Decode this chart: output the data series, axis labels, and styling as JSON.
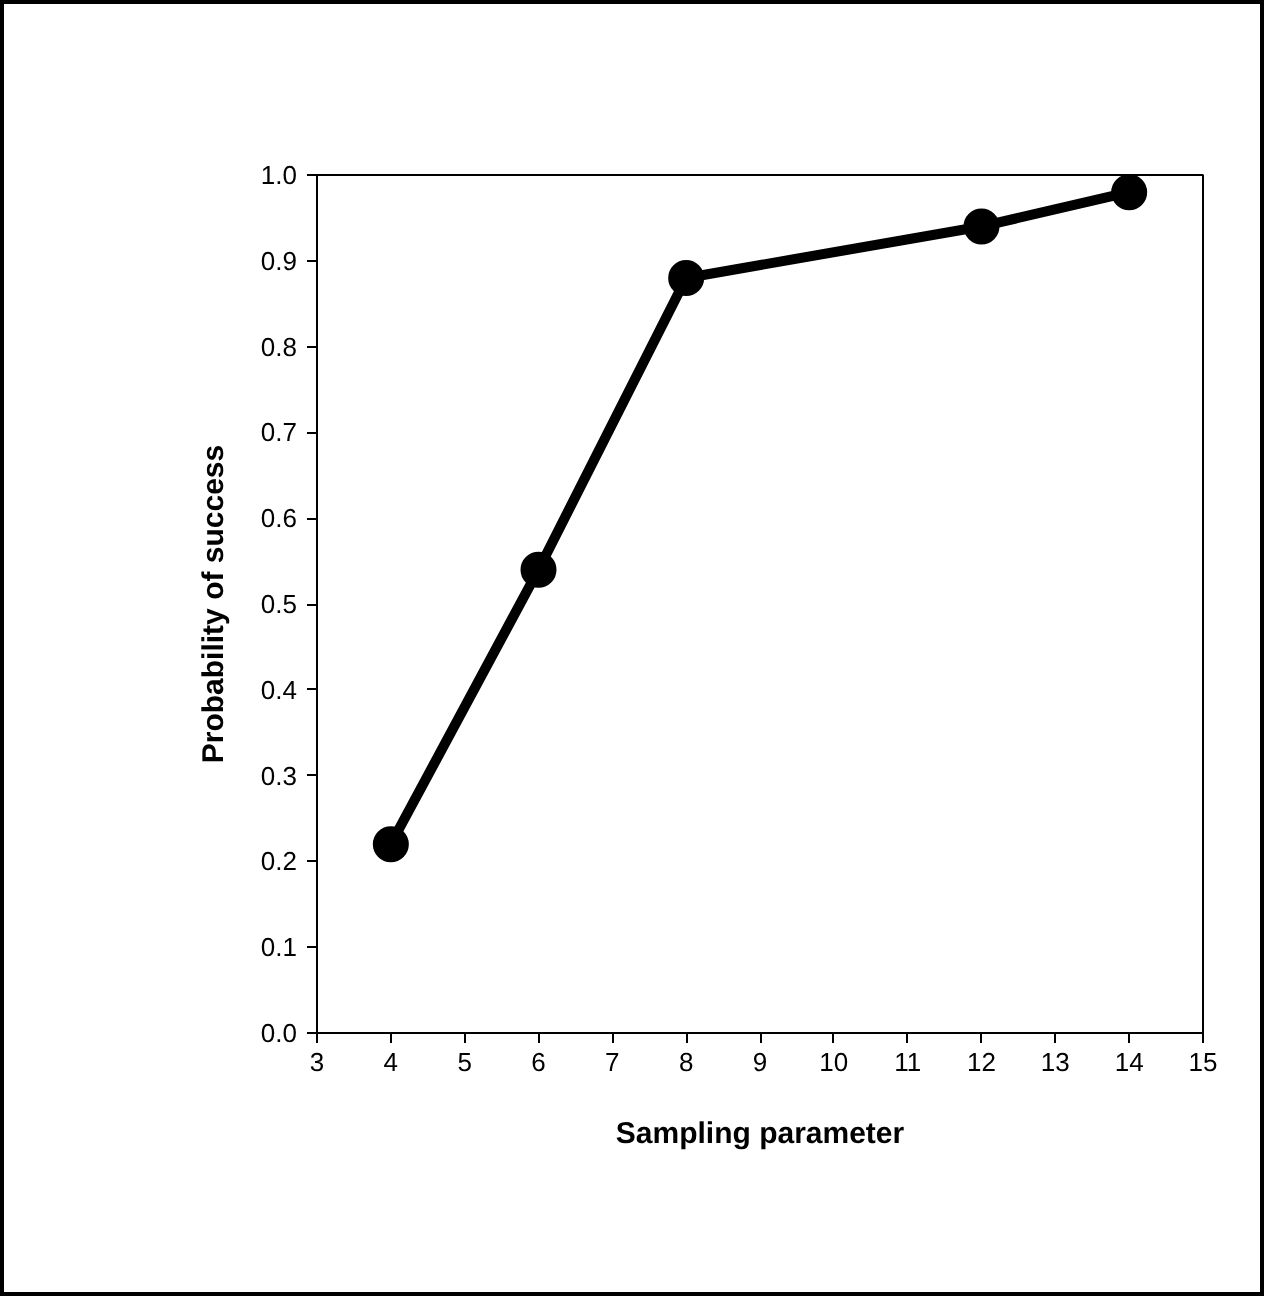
{
  "chart_data": {
    "type": "line",
    "xlabel": "Sampling parameter",
    "ylabel": "Probability of success",
    "x": [
      4,
      6,
      8,
      12,
      14
    ],
    "series": [
      {
        "color": "#000000",
        "values": [
          0.22,
          0.54,
          0.88,
          0.94,
          0.98
        ]
      }
    ],
    "xlim": [
      3,
      15
    ],
    "xticks": [
      3,
      4,
      5,
      6,
      7,
      8,
      9,
      10,
      11,
      12,
      13,
      14,
      15
    ],
    "ylim": [
      0,
      1
    ],
    "yticks": [
      {
        "value": 0,
        "label": "0.0"
      },
      0.1,
      0.2,
      0.3,
      0.4,
      0.5,
      0.6,
      0.7,
      0.8,
      0.9,
      {
        "value": 1,
        "label": "1.0"
      }
    ],
    "grid": false,
    "marker": "circle",
    "line_style": "solid"
  }
}
